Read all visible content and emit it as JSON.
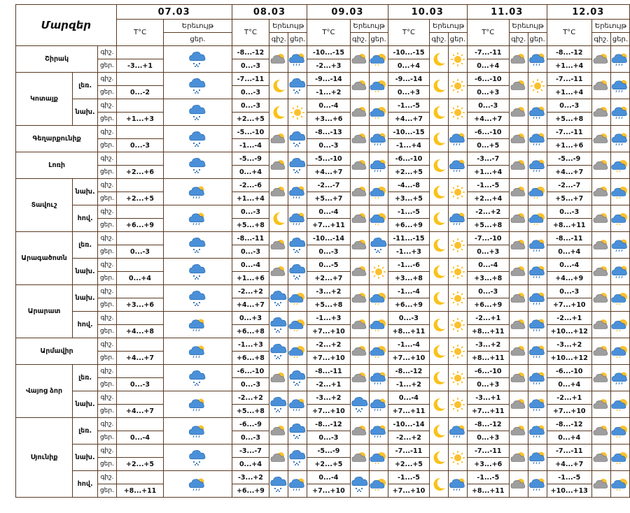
{
  "header": {
    "title": "Մարզեր",
    "temp_label": "T°C",
    "phen_label": "Երեւույթ",
    "day_label": "ցեր.",
    "night_label": "գիշ."
  },
  "dates": [
    "07.03",
    "08.03",
    "09.03",
    "10.03",
    "11.03",
    "12.03"
  ],
  "rows": [
    {
      "region": "Շիրակ",
      "span": 2,
      "sub": null,
      "tod": "գիշ.",
      "d1": null,
      "d2": [
        "-8...-12",
        "pc",
        "rain"
      ],
      "d3": [
        "-10...-15",
        "pc",
        "rainsun"
      ],
      "d4": [
        "-10...-15",
        "moon",
        "sun"
      ],
      "d5": [
        "-7...-11",
        "pc",
        "rain"
      ],
      "d6": [
        "-8...-12",
        "pc",
        "rain"
      ]
    },
    {
      "region": null,
      "sub": null,
      "tod": "ցեր.",
      "d1": [
        "-3...+1",
        "snow"
      ],
      "d2": [
        "0...-3"
      ],
      "d3": [
        "-2...+3"
      ],
      "d4": [
        "0...+4"
      ],
      "d5": [
        "0...+4"
      ],
      "d6": [
        "+1...+4"
      ]
    },
    {
      "region": "Կոտայք",
      "span": 4,
      "sub": "լեռ.",
      "subspan": 2,
      "tod": "գիշ.",
      "d1": null,
      "d2": [
        "-7...-11",
        "moon",
        "snow"
      ],
      "d3": [
        "-9...-14",
        "pc",
        "rainsun"
      ],
      "d4": [
        "-9...-14",
        "moon",
        "sun"
      ],
      "d5": [
        "-6...-10",
        "pc",
        "sun"
      ],
      "d6": [
        "-7...-11",
        "pc",
        "rain"
      ]
    },
    {
      "region": null,
      "sub": null,
      "tod": "ցեր.",
      "d1": [
        "0...-2",
        "snow"
      ],
      "d2": [
        "0...-3"
      ],
      "d3": [
        "-1...+2"
      ],
      "d4": [
        "0...+3"
      ],
      "d5": [
        "0...+3"
      ],
      "d6": [
        "+1...+4"
      ]
    },
    {
      "region": null,
      "sub": "նախ.",
      "subspan": 2,
      "tod": "գիշ.",
      "d1": null,
      "d2": [
        "0...-3",
        "moon",
        "sun"
      ],
      "d3": [
        "0...-4",
        "pc",
        "rainsun"
      ],
      "d4": [
        "-1...-5",
        "moon",
        "sun"
      ],
      "d5": [
        "0...-3",
        "pc",
        "rain"
      ],
      "d6": [
        "0...-3",
        "pc",
        "rain"
      ]
    },
    {
      "region": null,
      "sub": null,
      "tod": "ցեր.",
      "d1": [
        "+1...+3",
        "snow"
      ],
      "d2": [
        "+2...+5"
      ],
      "d3": [
        "+3...+6"
      ],
      "d4": [
        "+4...+7"
      ],
      "d5": [
        "+4...+7"
      ],
      "d6": [
        "+5...+8"
      ]
    },
    {
      "region": "Գեղարքունիք",
      "span": 2,
      "sub": null,
      "tod": "գիշ.",
      "d1": null,
      "d2": [
        "-5...-10",
        "pc",
        "snow"
      ],
      "d3": [
        "-8...-13",
        "pc",
        "rain"
      ],
      "d4": [
        "-10...-15",
        "moon",
        "rain"
      ],
      "d5": [
        "-6...-10",
        "pc",
        "rain"
      ],
      "d6": [
        "-7...-11",
        "pc",
        "rain"
      ]
    },
    {
      "region": null,
      "sub": null,
      "tod": "ցեր.",
      "d1": [
        "0...-3",
        "snow"
      ],
      "d2": [
        "-1...-4"
      ],
      "d3": [
        "0...-3"
      ],
      "d4": [
        "-1...+4"
      ],
      "d5": [
        "0...+5"
      ],
      "d6": [
        "+1...+6"
      ]
    },
    {
      "region": "Լոռի",
      "span": 2,
      "sub": null,
      "tod": "գիշ.",
      "d1": null,
      "d2": [
        "-5...-9",
        "pc",
        "snow"
      ],
      "d3": [
        "-5...-10",
        "pc",
        "rain"
      ],
      "d4": [
        "-6...-10",
        "moon",
        "rain"
      ],
      "d5": [
        "-3...-7",
        "pc",
        "rain"
      ],
      "d6": [
        "-5...-9",
        "pc",
        "rainsun"
      ]
    },
    {
      "region": null,
      "sub": null,
      "tod": "ցեր.",
      "d1": [
        "+2...+6",
        "snow"
      ],
      "d2": [
        "0...+4"
      ],
      "d3": [
        "+4...+7"
      ],
      "d4": [
        "+2...+5"
      ],
      "d5": [
        "+1...+4"
      ],
      "d6": [
        "+4...+7"
      ]
    },
    {
      "region": "Տավուշ",
      "span": 4,
      "sub": "նախ.",
      "subspan": 2,
      "tod": "գիշ.",
      "d1": null,
      "d2": [
        "-2...-6",
        "pc",
        "rain"
      ],
      "d3": [
        "-2...-7",
        "pc",
        "rainsun"
      ],
      "d4": [
        "-4...-8",
        "moon",
        "sun"
      ],
      "d5": [
        "-1...-5",
        "pc",
        "rainsun"
      ],
      "d6": [
        "-2...-7",
        "pc",
        "rainsun"
      ]
    },
    {
      "region": null,
      "sub": null,
      "tod": "ցեր.",
      "d1": [
        "+2...+5",
        "rain"
      ],
      "d2": [
        "+1...+4"
      ],
      "d3": [
        "+5...+7"
      ],
      "d4": [
        "+3...+5"
      ],
      "d5": [
        "+2...+4"
      ],
      "d6": [
        "+5...+7"
      ]
    },
    {
      "region": null,
      "sub": "հով.",
      "subspan": 2,
      "tod": "գիշ.",
      "d1": null,
      "d2": [
        "0...-3",
        "moon",
        "rain"
      ],
      "d3": [
        "0...-4",
        "pc",
        "rainsun"
      ],
      "d4": [
        "-1...-5",
        "moon",
        "rain"
      ],
      "d5": [
        "-2...+2",
        "pc",
        "rainsun"
      ],
      "d6": [
        "0...-3",
        "pc",
        "rainsun"
      ]
    },
    {
      "region": null,
      "sub": null,
      "tod": "ցեր.",
      "d1": [
        "+6...+9",
        "rain"
      ],
      "d2": [
        "+5...+8"
      ],
      "d3": [
        "+7...+11"
      ],
      "d4": [
        "+6...+9"
      ],
      "d5": [
        "+5...+8"
      ],
      "d6": [
        "+8...+11"
      ]
    },
    {
      "region": "Արագածոտն",
      "span": 4,
      "sub": "լեռ.",
      "subspan": 2,
      "tod": "գիշ.",
      "d1": null,
      "d2": [
        "-8...-11",
        "pc",
        "snow"
      ],
      "d3": [
        "-10...-14",
        "pc",
        "snow"
      ],
      "d4": [
        "-11...-15",
        "moon",
        "sun"
      ],
      "d5": [
        "-7...-10",
        "pc",
        "rain"
      ],
      "d6": [
        "-8...-11",
        "pc",
        "rain"
      ]
    },
    {
      "region": null,
      "sub": null,
      "tod": "ցեր.",
      "d1": [
        "0...-3",
        "snow"
      ],
      "d2": [
        "0...-3"
      ],
      "d3": [
        "0...-3"
      ],
      "d4": [
        "-1...+3"
      ],
      "d5": [
        "0...+3"
      ],
      "d6": [
        "0...+4"
      ]
    },
    {
      "region": null,
      "sub": "նախ.",
      "subspan": 2,
      "tod": "գիշ.",
      "d1": null,
      "d2": [
        "0...-4",
        "pc",
        "snow"
      ],
      "d3": [
        "0...-5",
        "pc",
        "sun"
      ],
      "d4": [
        "-1...-6",
        "moon",
        "sun"
      ],
      "d5": [
        "0...-4",
        "pc",
        "rain"
      ],
      "d6": [
        "0...-4",
        "pc",
        "rain"
      ]
    },
    {
      "region": null,
      "sub": null,
      "tod": "ցեր.",
      "d1": [
        "0...+4",
        "snow"
      ],
      "d2": [
        "+1...+6"
      ],
      "d3": [
        "+2...+7"
      ],
      "d4": [
        "+3...+8"
      ],
      "d5": [
        "+3...+8"
      ],
      "d6": [
        "+4...+9"
      ]
    },
    {
      "region": "Արարատ",
      "span": 4,
      "sub": "նախ.",
      "subspan": 2,
      "tod": "գիշ.",
      "d1": null,
      "d2": [
        "-2...+2",
        "snow",
        "rainsun"
      ],
      "d3": [
        "-3...+2",
        "pc",
        "rainsun"
      ],
      "d4": [
        "-1...-4",
        "moon",
        "sun"
      ],
      "d5": [
        "0...-3",
        "pc",
        "rain"
      ],
      "d6": [
        "0...-3",
        "pc",
        "rainsun"
      ]
    },
    {
      "region": null,
      "sub": null,
      "tod": "ցեր.",
      "d1": [
        "+3...+6",
        "snow"
      ],
      "d2": [
        "+4...+7"
      ],
      "d3": [
        "+5...+8"
      ],
      "d4": [
        "+6...+9"
      ],
      "d5": [
        "+6...+9"
      ],
      "d6": [
        "+7...+10"
      ]
    },
    {
      "region": null,
      "sub": "հով.",
      "subspan": 2,
      "tod": "գիշ.",
      "d1": null,
      "d2": [
        "0...+3",
        "snow",
        "rainsun"
      ],
      "d3": [
        "-1...+3",
        "pc",
        "rainsun"
      ],
      "d4": [
        "0...-3",
        "moon",
        "sun"
      ],
      "d5": [
        "-2...+1",
        "pc",
        "rain"
      ],
      "d6": [
        "-2...+1",
        "pc",
        "rainsun"
      ]
    },
    {
      "region": null,
      "sub": null,
      "tod": "ցեր.",
      "d1": [
        "+4...+8",
        "rain"
      ],
      "d2": [
        "+6...+8"
      ],
      "d3": [
        "+7...+10"
      ],
      "d4": [
        "+8...+11"
      ],
      "d5": [
        "+8...+11"
      ],
      "d6": [
        "+10...+12"
      ]
    },
    {
      "region": "Արմավիր",
      "span": 2,
      "sub": null,
      "tod": "գիշ.",
      "d1": null,
      "d2": [
        "-1...+3",
        "snow",
        "rainsun"
      ],
      "d3": [
        "-2...+2",
        "pc",
        "rainsun"
      ],
      "d4": [
        "-1...-4",
        "moon",
        "sun"
      ],
      "d5": [
        "-3...+2",
        "pc",
        "rain"
      ],
      "d6": [
        "-3...+2",
        "pc",
        "rainsun"
      ]
    },
    {
      "region": null,
      "sub": null,
      "tod": "ցեր.",
      "d1": [
        "+4...+7",
        "rain"
      ],
      "d2": [
        "+6...+8"
      ],
      "d3": [
        "+7...+10"
      ],
      "d4": [
        "+7...+10"
      ],
      "d5": [
        "+8...+11"
      ],
      "d6": [
        "+10...+12"
      ]
    },
    {
      "region": "Վայոց ձոր",
      "span": 4,
      "sub": "լեռ.",
      "subspan": 2,
      "tod": "գիշ.",
      "d1": null,
      "d2": [
        "-6...-10",
        "pc",
        "snow"
      ],
      "d3": [
        "-8...-11",
        "pc",
        "rain"
      ],
      "d4": [
        "-8...-12",
        "moon",
        "sun"
      ],
      "d5": [
        "-6...-10",
        "pc",
        "rain"
      ],
      "d6": [
        "-6...-10",
        "pc",
        "rain"
      ]
    },
    {
      "region": null,
      "sub": null,
      "tod": "ցեր.",
      "d1": [
        "0...-3",
        "snow"
      ],
      "d2": [
        "0...-3"
      ],
      "d3": [
        "-2...+1"
      ],
      "d4": [
        "-1...+2"
      ],
      "d5": [
        "0...+3"
      ],
      "d6": [
        "0...+4"
      ]
    },
    {
      "region": null,
      "sub": "նախ.",
      "subspan": 2,
      "tod": "գիշ.",
      "d1": null,
      "d2": [
        "-2...+2",
        "snow",
        "rain"
      ],
      "d3": [
        "-3...+2",
        "snow",
        "rain"
      ],
      "d4": [
        "0...-4",
        "moon",
        "sun"
      ],
      "d5": [
        "-3...+1",
        "pc",
        "rain"
      ],
      "d6": [
        "-2...+1",
        "pc",
        "rainsun"
      ]
    },
    {
      "region": null,
      "sub": null,
      "tod": "ցեր.",
      "d1": [
        "+4...+7",
        "rain"
      ],
      "d2": [
        "+5...+8"
      ],
      "d3": [
        "+7...+10"
      ],
      "d4": [
        "+7...+11"
      ],
      "d5": [
        "+7...+11"
      ],
      "d6": [
        "+7...+10"
      ]
    },
    {
      "region": "Սյունիք",
      "span": 6,
      "sub": "լեռ.",
      "subspan": 2,
      "tod": "գիշ.",
      "d1": null,
      "d2": [
        "-6...-9",
        "pc",
        "snow"
      ],
      "d3": [
        "-8...-12",
        "pc",
        "rain"
      ],
      "d4": [
        "-10...-14",
        "moon",
        "rain"
      ],
      "d5": [
        "-8...-12",
        "pc",
        "rain"
      ],
      "d6": [
        "-8...-12",
        "pc",
        "rainsun"
      ]
    },
    {
      "region": null,
      "sub": null,
      "tod": "ցեր.",
      "d1": [
        "0...-4",
        "rain"
      ],
      "d2": [
        "0...-3"
      ],
      "d3": [
        "0...-3"
      ],
      "d4": [
        "-2...+2"
      ],
      "d5": [
        "0...+3"
      ],
      "d6": [
        "0...+4"
      ]
    },
    {
      "region": null,
      "sub": "նախ.",
      "subspan": 2,
      "tod": "գիշ.",
      "d1": null,
      "d2": [
        "-3...-7",
        "pc",
        "snow"
      ],
      "d3": [
        "-5...-9",
        "pc",
        "rainsun"
      ],
      "d4": [
        "-7...-11",
        "moon",
        "sun"
      ],
      "d5": [
        "-7...-11",
        "pc",
        "rain"
      ],
      "d6": [
        "-7...-11",
        "pc",
        "rainsun"
      ]
    },
    {
      "region": null,
      "sub": null,
      "tod": "ցեր.",
      "d1": [
        "+2...+5",
        "snow"
      ],
      "d2": [
        "0...+4"
      ],
      "d3": [
        "+2...+5"
      ],
      "d4": [
        "+2...+5"
      ],
      "d5": [
        "+3...+6"
      ],
      "d6": [
        "+4...+7"
      ]
    },
    {
      "region": null,
      "sub": "հով.",
      "subspan": 2,
      "tod": "գիշ.",
      "d1": null,
      "d2": [
        "-3...+2",
        "snow",
        "rain"
      ],
      "d3": [
        "0...-4",
        "snow",
        "rainsun"
      ],
      "d4": [
        "-1...-5",
        "moon",
        "rain"
      ],
      "d5": [
        "-1...-5",
        "pc",
        "rain"
      ],
      "d6": [
        "-1...-5",
        "pc",
        "rainsun"
      ]
    },
    {
      "region": null,
      "sub": null,
      "tod": "ցեր.",
      "d1": [
        "+8...+11",
        "rain"
      ],
      "d2": [
        "+6...+9"
      ],
      "d3": [
        "+7...+10"
      ],
      "d4": [
        "+7...+10"
      ],
      "d5": [
        "+8...+11"
      ],
      "d6": [
        "+10...+13"
      ]
    }
  ]
}
